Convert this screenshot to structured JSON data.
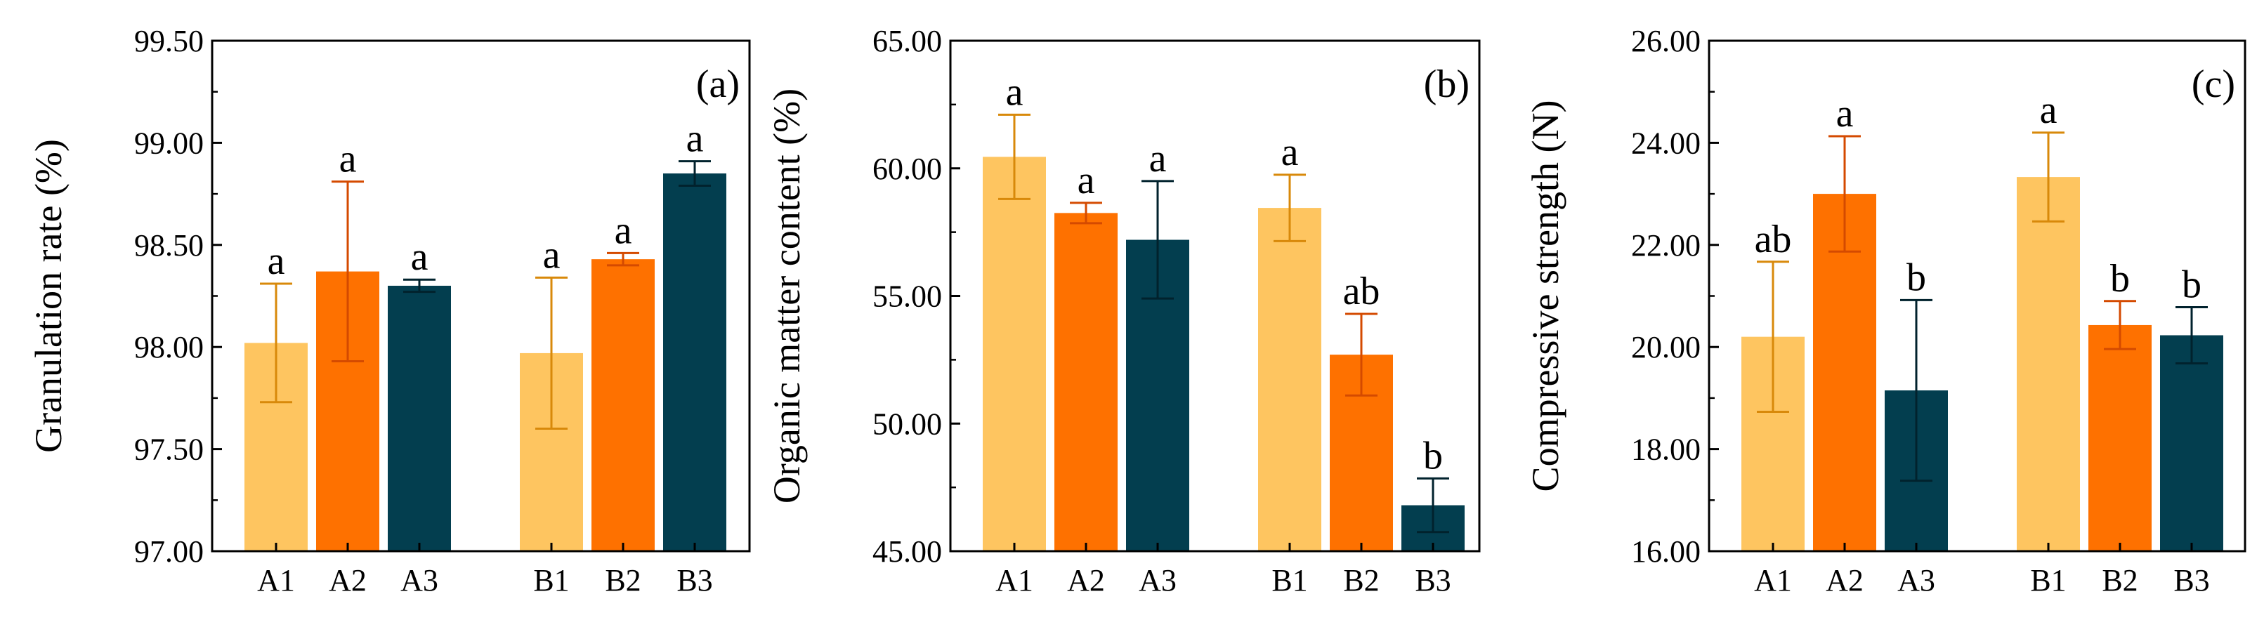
{
  "colors": {
    "light_orange": "#FEC560",
    "orange": "#FE7100",
    "dark_teal": "#033E4F",
    "err_light": "#D8890A",
    "err_orange": "#D44A00",
    "err_teal": "#01222D"
  },
  "chart_data": [
    {
      "type": "bar",
      "panel_label": "(a)",
      "ylabel": "Granulation rate (%)",
      "ylim": [
        97.0,
        99.5
      ],
      "yticks": [
        "97.00",
        "97.50",
        "98.00",
        "98.50",
        "99.00",
        "99.50"
      ],
      "ytick_values": [
        97.0,
        97.5,
        98.0,
        98.5,
        99.0,
        99.5
      ],
      "categories": [
        "A1",
        "A2",
        "A3",
        "B1",
        "B2",
        "B3"
      ],
      "values": [
        98.02,
        98.37,
        98.3,
        97.97,
        98.43,
        98.85
      ],
      "errors": [
        0.29,
        0.44,
        0.03,
        0.37,
        0.03,
        0.06
      ],
      "significance": [
        "a",
        "a",
        "a",
        "a",
        "a",
        "a"
      ],
      "color_keys": [
        "light_orange",
        "orange",
        "dark_teal",
        "light_orange",
        "orange",
        "dark_teal"
      ]
    },
    {
      "type": "bar",
      "panel_label": "(b)",
      "ylabel": "Organic matter content (%)",
      "ylim": [
        45.0,
        65.0
      ],
      "yticks": [
        "45.00",
        "50.00",
        "55.00",
        "60.00",
        "65.00"
      ],
      "ytick_values": [
        45.0,
        50.0,
        55.0,
        60.0,
        65.0
      ],
      "categories": [
        "A1",
        "A2",
        "A3",
        "B1",
        "B2",
        "B3"
      ],
      "values": [
        60.45,
        58.25,
        57.2,
        58.45,
        52.7,
        46.8
      ],
      "errors": [
        1.65,
        0.4,
        2.3,
        1.3,
        1.6,
        1.05
      ],
      "significance": [
        "a",
        "a",
        "a",
        "a",
        "ab",
        "b"
      ],
      "color_keys": [
        "light_orange",
        "orange",
        "dark_teal",
        "light_orange",
        "orange",
        "dark_teal"
      ]
    },
    {
      "type": "bar",
      "panel_label": "(c)",
      "ylabel": "Compressive strength (N)",
      "ylim": [
        16.0,
        26.0
      ],
      "yticks": [
        "16.00",
        "18.00",
        "20.00",
        "22.00",
        "24.00",
        "26.00"
      ],
      "ytick_values": [
        16.0,
        18.0,
        20.0,
        22.0,
        24.0,
        26.0
      ],
      "categories": [
        "A1",
        "A2",
        "A3",
        "B1",
        "B2",
        "B3"
      ],
      "values": [
        20.2,
        23.0,
        19.15,
        23.33,
        20.43,
        20.23
      ],
      "errors": [
        1.47,
        1.13,
        1.77,
        0.87,
        0.47,
        0.55
      ],
      "significance": [
        "ab",
        "a",
        "b",
        "a",
        "b",
        "b"
      ],
      "color_keys": [
        "light_orange",
        "orange",
        "dark_teal",
        "light_orange",
        "orange",
        "dark_teal"
      ]
    }
  ]
}
